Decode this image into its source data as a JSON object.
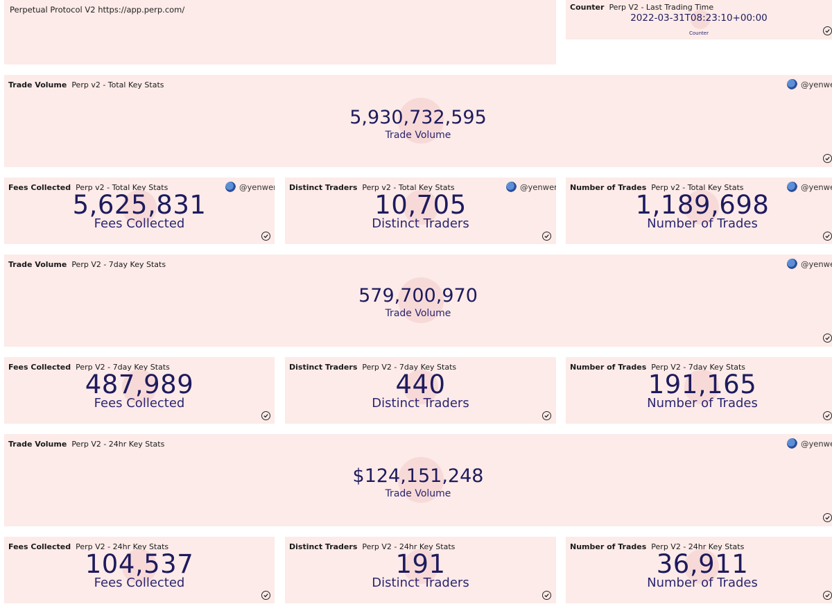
{
  "intro": {
    "text": "Perpetual Protocol V2 https://app.perp.com/"
  },
  "counter": {
    "kind": "Counter",
    "title": "Perp V2 - Last Trading Time",
    "value": "2022-03-31T08:23:10+00:00",
    "label": "Counter"
  },
  "author": "@yenwen",
  "sections": [
    {
      "volume": {
        "kind": "Trade Volume",
        "title": "Perp v2 - Total Key Stats",
        "value": "5,930,732,595",
        "label": "Trade Volume"
      },
      "fees": {
        "kind": "Fees Collected",
        "title": "Perp v2 - Total Key Stats",
        "value": "5,625,831",
        "label": "Fees Collected"
      },
      "traders": {
        "kind": "Distinct Traders",
        "title": "Perp v2 - Total Key Stats",
        "value": "10,705",
        "label": "Distinct Traders"
      },
      "trades": {
        "kind": "Number of Trades",
        "title": "Perp v2 - Total Key Stats",
        "value": "1,189,698",
        "label": "Number of Trades"
      }
    },
    {
      "volume": {
        "kind": "Trade Volume",
        "title": "Perp V2 - 7day Key Stats",
        "value": "579,700,970",
        "label": "Trade Volume"
      },
      "fees": {
        "kind": "Fees Collected",
        "title": "Perp V2 - 7day Key Stats",
        "value": "487,989",
        "label": "Fees Collected"
      },
      "traders": {
        "kind": "Distinct Traders",
        "title": "Perp V2 - 7day Key Stats",
        "value": "440",
        "label": "Distinct Traders"
      },
      "trades": {
        "kind": "Number of Trades",
        "title": "Perp V2 - 7day Key Stats",
        "value": "191,165",
        "label": "Number of Trades"
      }
    },
    {
      "volume": {
        "kind": "Trade Volume",
        "title": "Perp V2 - 24hr Key Stats",
        "value": "$124,151,248",
        "label": "Trade Volume"
      },
      "fees": {
        "kind": "Fees Collected",
        "title": "Perp V2 - 24hr Key Stats",
        "value": "104,537",
        "label": "Fees Collected"
      },
      "traders": {
        "kind": "Distinct Traders",
        "title": "Perp V2 - 24hr Key Stats",
        "value": "191",
        "label": "Distinct Traders"
      },
      "trades": {
        "kind": "Number of Trades",
        "title": "Perp V2 - 24hr Key Stats",
        "value": "36,911",
        "label": "Number of Trades"
      }
    }
  ]
}
